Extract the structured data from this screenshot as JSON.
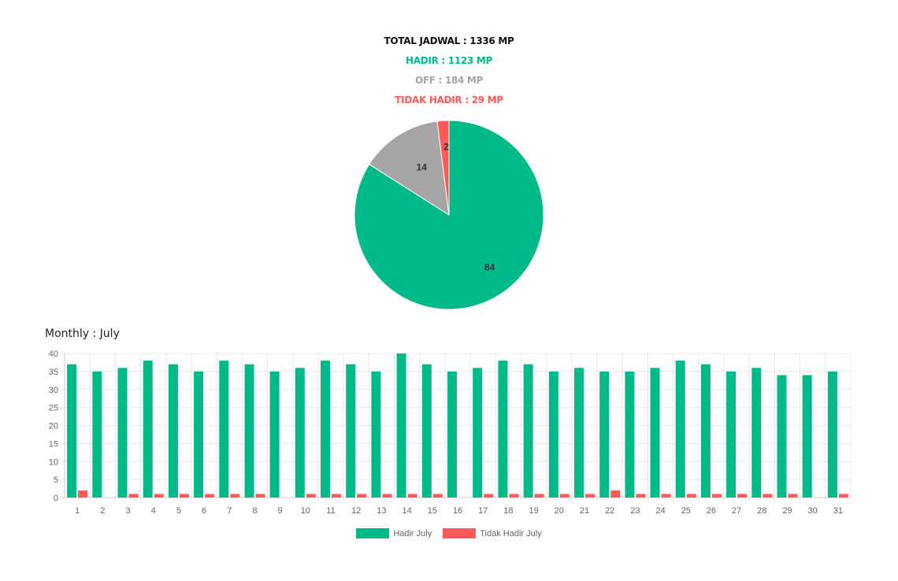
{
  "summary": {
    "total": "TOTAL JADWAL : 1336 MP",
    "hadir": "HADIR : 1123 MP",
    "off": "OFF : 184 MP",
    "tidak_hadir": "TIDAK HADIR : 29 MP"
  },
  "colors": {
    "hadir": "#00ba8a",
    "off": "#a5a5a5",
    "tidak_hadir": "#ff5a5a",
    "total": "#111111",
    "grid": "#e8e8e8",
    "tick": "#666666"
  },
  "monthly_title": "Monthly : July",
  "chart_data": [
    {
      "type": "pie",
      "labels": [
        "Hadir",
        "Off",
        "Tidak Hadir"
      ],
      "values": [
        84,
        14,
        2
      ],
      "colors": [
        "#00ba8a",
        "#a5a5a5",
        "#ff5a5a"
      ],
      "data_labels": [
        "84",
        "14",
        "2"
      ]
    },
    {
      "type": "bar",
      "title": "Monthly : July",
      "categories": [
        "1",
        "2",
        "3",
        "4",
        "5",
        "6",
        "7",
        "8",
        "9",
        "10",
        "11",
        "12",
        "13",
        "14",
        "15",
        "16",
        "17",
        "18",
        "19",
        "20",
        "21",
        "22",
        "23",
        "24",
        "25",
        "26",
        "27",
        "28",
        "29",
        "30",
        "31"
      ],
      "series": [
        {
          "name": "Hadir July",
          "color": "#00ba8a",
          "values": [
            37,
            35,
            36,
            38,
            37,
            35,
            38,
            37,
            35,
            36,
            38,
            37,
            35,
            40,
            37,
            35,
            36,
            38,
            37,
            35,
            36,
            35,
            35,
            36,
            38,
            37,
            35,
            36,
            34,
            34,
            35
          ]
        },
        {
          "name": "Tidak Hadir July",
          "color": "#ff5a5a",
          "values": [
            2,
            0,
            1,
            1,
            1,
            1,
            1,
            1,
            0,
            1,
            1,
            1,
            1,
            1,
            1,
            0,
            1,
            1,
            1,
            1,
            1,
            2,
            1,
            1,
            1,
            1,
            1,
            1,
            1,
            0,
            1
          ]
        }
      ],
      "ylim": [
        0,
        40
      ],
      "yticks": [
        0,
        5,
        10,
        15,
        20,
        25,
        30,
        35,
        40
      ],
      "grid": true,
      "legend": "bottom"
    }
  ]
}
